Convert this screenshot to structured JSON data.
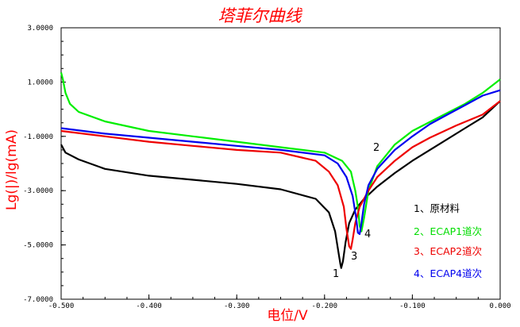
{
  "chart_data": {
    "type": "line",
    "title": "塔菲尔曲线",
    "xlabel": "电位/V",
    "ylabel": "Lg(|)/lg(mA)",
    "xlim": [
      -0.5,
      0.0
    ],
    "ylim": [
      -7.0,
      3.0
    ],
    "x_ticks": [
      -0.5,
      -0.4,
      -0.3,
      -0.2,
      -0.1,
      0.0
    ],
    "x_tick_labels": [
      "-0.500",
      "-0.400",
      "-0.300",
      "-0.200",
      "-0.100",
      "0.000"
    ],
    "y_ticks": [
      3,
      1,
      -1,
      -3,
      -5,
      -7
    ],
    "y_tick_labels": [
      "3.0000",
      "1.0000",
      "-1.0000",
      "-3.0000",
      "-5.0000",
      "-7.0000"
    ],
    "series": [
      {
        "name": "1、原材料",
        "label": "1",
        "color": "#000000",
        "points": [
          [
            -0.5,
            -1.3
          ],
          [
            -0.495,
            -1.6
          ],
          [
            -0.48,
            -1.85
          ],
          [
            -0.45,
            -2.2
          ],
          [
            -0.4,
            -2.45
          ],
          [
            -0.35,
            -2.6
          ],
          [
            -0.3,
            -2.75
          ],
          [
            -0.25,
            -2.95
          ],
          [
            -0.21,
            -3.3
          ],
          [
            -0.195,
            -3.8
          ],
          [
            -0.188,
            -4.5
          ],
          [
            -0.184,
            -5.3
          ],
          [
            -0.182,
            -5.7
          ],
          [
            -0.181,
            -5.85
          ],
          [
            -0.179,
            -5.6
          ],
          [
            -0.176,
            -4.9
          ],
          [
            -0.172,
            -4.2
          ],
          [
            -0.165,
            -3.7
          ],
          [
            -0.155,
            -3.3
          ],
          [
            -0.14,
            -2.85
          ],
          [
            -0.12,
            -2.35
          ],
          [
            -0.1,
            -1.9
          ],
          [
            -0.07,
            -1.3
          ],
          [
            -0.04,
            -0.7
          ],
          [
            -0.02,
            -0.3
          ],
          [
            0.0,
            0.3
          ]
        ]
      },
      {
        "name": "2、ECAP1道次",
        "label": "2",
        "color": "#00ee00",
        "points": [
          [
            -0.5,
            1.35
          ],
          [
            -0.498,
            1.1
          ],
          [
            -0.495,
            0.6
          ],
          [
            -0.49,
            0.2
          ],
          [
            -0.48,
            -0.1
          ],
          [
            -0.45,
            -0.45
          ],
          [
            -0.4,
            -0.8
          ],
          [
            -0.35,
            -1.0
          ],
          [
            -0.3,
            -1.2
          ],
          [
            -0.25,
            -1.4
          ],
          [
            -0.2,
            -1.6
          ],
          [
            -0.18,
            -1.9
          ],
          [
            -0.17,
            -2.3
          ],
          [
            -0.165,
            -3.0
          ],
          [
            -0.162,
            -3.6
          ],
          [
            -0.16,
            -4.3
          ],
          [
            -0.158,
            -4.5
          ],
          [
            -0.155,
            -4.0
          ],
          [
            -0.15,
            -3.0
          ],
          [
            -0.14,
            -2.1
          ],
          [
            -0.12,
            -1.3
          ],
          [
            -0.1,
            -0.8
          ],
          [
            -0.07,
            -0.3
          ],
          [
            -0.04,
            0.2
          ],
          [
            -0.02,
            0.6
          ],
          [
            0.0,
            1.1
          ]
        ]
      },
      {
        "name": "3、ECAP2道次",
        "label": "3",
        "color": "#ee0000",
        "points": [
          [
            -0.5,
            -0.8
          ],
          [
            -0.45,
            -1.0
          ],
          [
            -0.4,
            -1.2
          ],
          [
            -0.35,
            -1.35
          ],
          [
            -0.3,
            -1.5
          ],
          [
            -0.25,
            -1.6
          ],
          [
            -0.21,
            -1.9
          ],
          [
            -0.195,
            -2.3
          ],
          [
            -0.185,
            -2.8
          ],
          [
            -0.178,
            -3.6
          ],
          [
            -0.175,
            -4.4
          ],
          [
            -0.172,
            -5.05
          ],
          [
            -0.17,
            -5.15
          ],
          [
            -0.168,
            -4.8
          ],
          [
            -0.165,
            -4.2
          ],
          [
            -0.16,
            -3.6
          ],
          [
            -0.15,
            -3.0
          ],
          [
            -0.14,
            -2.5
          ],
          [
            -0.12,
            -1.9
          ],
          [
            -0.1,
            -1.4
          ],
          [
            -0.08,
            -1.05
          ],
          [
            -0.07,
            -0.9
          ],
          [
            -0.05,
            -0.6
          ],
          [
            -0.02,
            -0.2
          ],
          [
            0.0,
            0.3
          ]
        ]
      },
      {
        "name": "4、ECAP4道次",
        "label": "4",
        "color": "#0000ee",
        "points": [
          [
            -0.5,
            -0.7
          ],
          [
            -0.45,
            -0.9
          ],
          [
            -0.4,
            -1.05
          ],
          [
            -0.35,
            -1.2
          ],
          [
            -0.3,
            -1.35
          ],
          [
            -0.25,
            -1.5
          ],
          [
            -0.2,
            -1.7
          ],
          [
            -0.185,
            -2.0
          ],
          [
            -0.175,
            -2.5
          ],
          [
            -0.168,
            -3.2
          ],
          [
            -0.164,
            -4.0
          ],
          [
            -0.162,
            -4.55
          ],
          [
            -0.16,
            -4.6
          ],
          [
            -0.158,
            -4.2
          ],
          [
            -0.155,
            -3.5
          ],
          [
            -0.15,
            -2.8
          ],
          [
            -0.14,
            -2.2
          ],
          [
            -0.12,
            -1.5
          ],
          [
            -0.1,
            -1.0
          ],
          [
            -0.08,
            -0.55
          ],
          [
            -0.06,
            -0.2
          ],
          [
            -0.04,
            0.15
          ],
          [
            -0.02,
            0.5
          ],
          [
            0.0,
            0.7
          ]
        ]
      }
    ]
  },
  "legend": {
    "items": [
      {
        "text": "1、原材料",
        "color": "#000000"
      },
      {
        "text": "2、ECAP1道次",
        "color": "#00dd00"
      },
      {
        "text": "3、ECAP2道次",
        "color": "#ee0000"
      },
      {
        "text": "4、ECAP4道次",
        "color": "#0000ee"
      }
    ]
  },
  "curve_labels": [
    "1",
    "2",
    "3",
    "4"
  ]
}
